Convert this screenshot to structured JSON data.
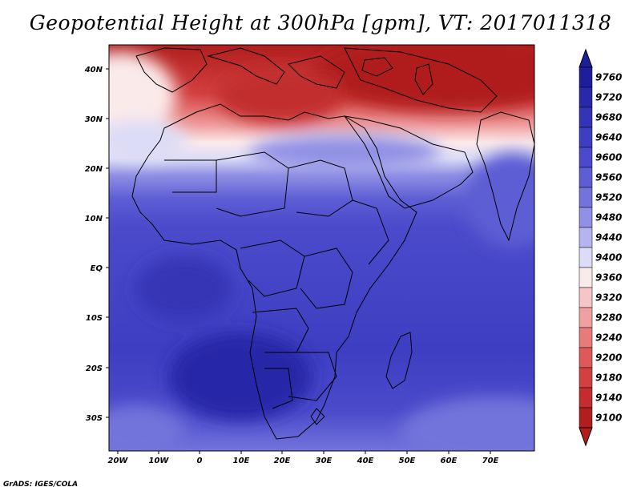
{
  "title": "Geopotential Height at 300hPa [gpm], VT: 2017011318",
  "variable": "Geopotential Height",
  "level": "300hPa",
  "units": "gpm",
  "valid_time": "2017011318",
  "credit": "GrADS: IGES/COLA",
  "lat_labels": [
    "40N",
    "30N",
    "20N",
    "10N",
    "EQ",
    "10S",
    "20S",
    "30S"
  ],
  "lon_labels": [
    "20W",
    "10W",
    "0",
    "10E",
    "20E",
    "30E",
    "40E",
    "50E",
    "60E",
    "70E"
  ],
  "colorbar": {
    "levels": [
      "9760",
      "9720",
      "9680",
      "9640",
      "9600",
      "9560",
      "9520",
      "9480",
      "9440",
      "9400",
      "9360",
      "9320",
      "9280",
      "9240",
      "9200",
      "9180",
      "9140",
      "9100"
    ],
    "colors": [
      "#1e1e9a",
      "#2828a8",
      "#3434b6",
      "#3e3ec2",
      "#4a4acb",
      "#5d5dd4",
      "#7373dc",
      "#9090e5",
      "#b4b4ee",
      "#dcdcf6",
      "#fbeaea",
      "#f6c6c6",
      "#f0a0a0",
      "#e87a7a",
      "#de5a5a",
      "#d34040",
      "#c22d2d",
      "#b01e1e"
    ],
    "extend": "both"
  },
  "colors": {
    "land_outline": "#000000",
    "low_end": "#b01e1e",
    "high_end": "#1e1e9a"
  }
}
